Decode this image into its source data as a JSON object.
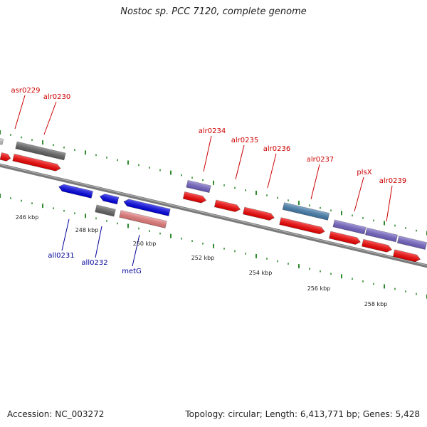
{
  "title": "Nostoc sp. PCC 7120, complete genome",
  "footer": {
    "accession": "Accession: NC_003272",
    "summary": "Topology: circular; Length: 6,413,771 bp; Genes: 5,428"
  },
  "colors": {
    "backbone": "#808080",
    "tick": "#2e8b2e",
    "cds": "#ff0000",
    "cds_reverse": "#0000ee",
    "rna": "#7766cc",
    "gene": "#666666",
    "gene_light": "#f08080",
    "misc": "#4682b4",
    "label_forward": "#cc0000",
    "label_reverse": "#000099"
  },
  "scale_labels": [
    "246 kbp",
    "248 kbp",
    "250 kbp",
    "252 kbp",
    "254 kbp",
    "256 kbp",
    "258 kbp"
  ],
  "features_forward": [
    {
      "label": "asr0229"
    },
    {
      "label": "alr0230"
    },
    {
      "label": "alr0234"
    },
    {
      "label": "alr0235"
    },
    {
      "label": "alr0236"
    },
    {
      "label": "alr0237"
    },
    {
      "label": "plsX"
    },
    {
      "label": "alr0239"
    }
  ],
  "features_reverse": [
    {
      "label": "all0231"
    },
    {
      "label": "all0232"
    },
    {
      "label": "metG"
    }
  ]
}
